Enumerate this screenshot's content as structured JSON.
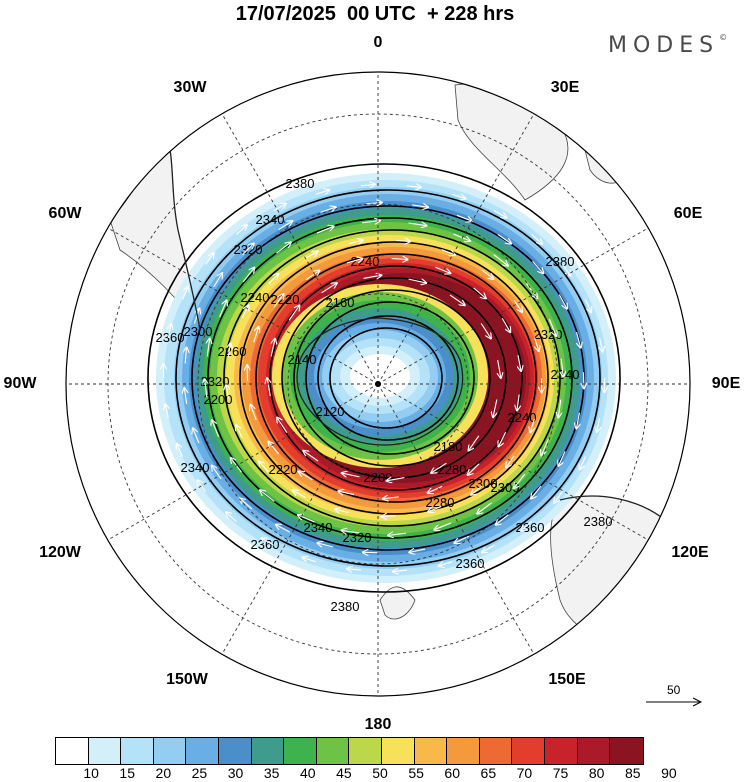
{
  "title": "17/07/2025  00 UTC  + 228 hrs",
  "brand": "MODES",
  "brand_mark": "©",
  "longitude_labels": {
    "l0": "0",
    "l30e": "30E",
    "l60e": "60E",
    "l90e": "90E",
    "l120e": "120E",
    "l150e": "150E",
    "l180": "180",
    "l150w": "150W",
    "l120w": "120W",
    "l90w": "90W",
    "l60w": "60W",
    "l30w": "30W"
  },
  "contour_labels": [
    "2380",
    "2380",
    "2380",
    "2380",
    "2360",
    "2360",
    "2360",
    "2360",
    "2340",
    "2340",
    "2340",
    "2340",
    "2320",
    "2320",
    "2320",
    "2320",
    "2300",
    "2300",
    "2300",
    "2280",
    "2280",
    "2260",
    "2240",
    "2240",
    "2240",
    "2220",
    "2220",
    "2200",
    "2200",
    "2180",
    "2160",
    "2140",
    "2120"
  ],
  "reference_vector": {
    "label": "50"
  },
  "colorbar": {
    "colors": [
      "#ffffff",
      "#d2effa",
      "#b4e2f8",
      "#94cdf2",
      "#6aaee6",
      "#4a8fca",
      "#3f9c8c",
      "#3fb34b",
      "#6dc345",
      "#bcd84a",
      "#f7e05a",
      "#f8b84a",
      "#f39a3d",
      "#ee6a35",
      "#e23d2d",
      "#c8232b",
      "#aa1a28",
      "#8a1422"
    ],
    "labels": [
      "10",
      "15",
      "20",
      "25",
      "30",
      "35",
      "40",
      "45",
      "50",
      "55",
      "60",
      "65",
      "70",
      "75",
      "80",
      "85",
      "90"
    ]
  },
  "map_layers": {
    "projection": "polar-stereographic",
    "speed_fill": "wind-speed-shading",
    "height_contours": "geopotential-height-contours",
    "wind_vectors": "wind-arrows",
    "land": "coastlines",
    "land_color": "#f2f2f2",
    "pole_marker": "pole-dot"
  }
}
